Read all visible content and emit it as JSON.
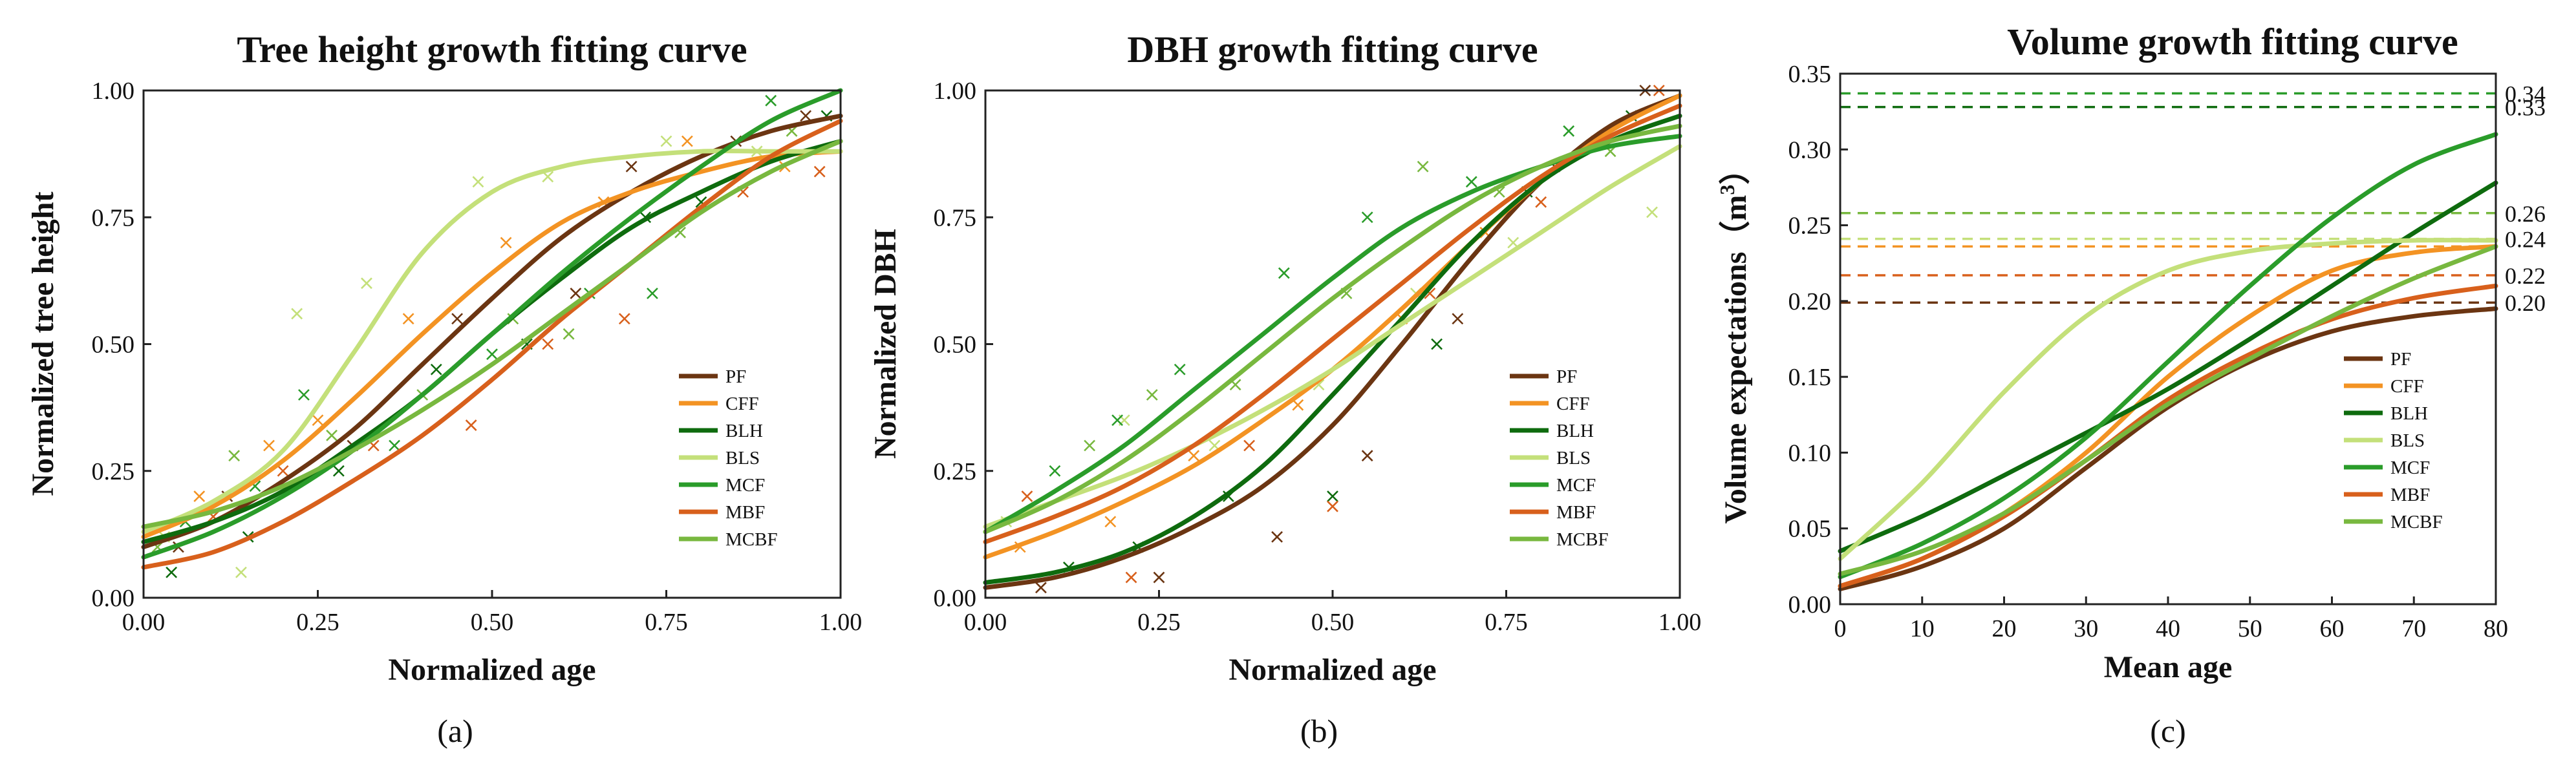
{
  "colors": {
    "PF": "#6b3512",
    "CFF": "#f39323",
    "BLH": "#0e6b0e",
    "BLS": "#c4e07a",
    "MCF": "#2a9c2a",
    "MBF": "#d8601c",
    "MCBF": "#78b83f"
  },
  "chart_data": [
    {
      "type": "line",
      "panel_label": "(a)",
      "title": "Tree height growth fitting curve",
      "xlabel": "Normalized age",
      "ylabel": "Normalized tree height",
      "xlim": [
        0,
        1
      ],
      "ylim": [
        0,
        1
      ],
      "xticks": [
        0,
        0.25,
        0.5,
        0.75,
        1
      ],
      "yticks": [
        0,
        0.25,
        0.5,
        0.75,
        1
      ],
      "xtick_labels": [
        "0.00",
        "0.25",
        "0.50",
        "0.75",
        "1.00"
      ],
      "ytick_labels": [
        "0.00",
        "0.25",
        "0.50",
        "0.75",
        "1.00"
      ],
      "legend": [
        "PF",
        "CFF",
        "BLH",
        "BLS",
        "MCF",
        "MBF",
        "MCBF"
      ],
      "x": [
        0,
        0.1,
        0.2,
        0.3,
        0.4,
        0.5,
        0.6,
        0.7,
        0.8,
        0.9,
        1.0
      ],
      "series": [
        {
          "name": "PF",
          "values": [
            0.1,
            0.15,
            0.23,
            0.33,
            0.46,
            0.59,
            0.71,
            0.8,
            0.87,
            0.92,
            0.95
          ]
        },
        {
          "name": "CFF",
          "values": [
            0.12,
            0.18,
            0.27,
            0.39,
            0.52,
            0.64,
            0.74,
            0.8,
            0.84,
            0.87,
            0.88
          ]
        },
        {
          "name": "BLH",
          "values": [
            0.11,
            0.15,
            0.21,
            0.3,
            0.4,
            0.52,
            0.63,
            0.73,
            0.8,
            0.86,
            0.9
          ]
        },
        {
          "name": "BLS",
          "values": [
            0.13,
            0.19,
            0.29,
            0.48,
            0.68,
            0.8,
            0.85,
            0.87,
            0.88,
            0.88,
            0.88
          ]
        },
        {
          "name": "MCF",
          "values": [
            0.08,
            0.13,
            0.2,
            0.29,
            0.4,
            0.52,
            0.64,
            0.75,
            0.85,
            0.94,
            1.0
          ]
        },
        {
          "name": "MBF",
          "values": [
            0.06,
            0.09,
            0.15,
            0.23,
            0.32,
            0.43,
            0.55,
            0.66,
            0.77,
            0.87,
            0.94
          ]
        },
        {
          "name": "MCBF",
          "values": [
            0.14,
            0.17,
            0.22,
            0.29,
            0.37,
            0.46,
            0.56,
            0.66,
            0.76,
            0.84,
            0.9
          ]
        }
      ],
      "scatter": [
        {
          "name": "PF",
          "x": [
            0.05,
            0.12,
            0.3,
            0.45,
            0.62,
            0.7,
            0.85,
            0.95
          ],
          "y": [
            0.1,
            0.2,
            0.3,
            0.55,
            0.6,
            0.85,
            0.9,
            0.95
          ]
        },
        {
          "name": "CFF",
          "x": [
            0.08,
            0.18,
            0.25,
            0.38,
            0.52,
            0.66,
            0.78,
            0.92
          ],
          "y": [
            0.2,
            0.3,
            0.35,
            0.55,
            0.7,
            0.78,
            0.9,
            0.85
          ]
        },
        {
          "name": "BLH",
          "x": [
            0.04,
            0.15,
            0.28,
            0.42,
            0.55,
            0.72,
            0.8,
            0.98
          ],
          "y": [
            0.05,
            0.12,
            0.25,
            0.45,
            0.5,
            0.75,
            0.78,
            0.95
          ]
        },
        {
          "name": "BLS",
          "x": [
            0.03,
            0.14,
            0.22,
            0.32,
            0.48,
            0.58,
            0.75,
            0.88
          ],
          "y": [
            0.12,
            0.05,
            0.56,
            0.62,
            0.82,
            0.83,
            0.9,
            0.88
          ]
        },
        {
          "name": "MCF",
          "x": [
            0.06,
            0.16,
            0.23,
            0.36,
            0.5,
            0.64,
            0.73,
            0.9
          ],
          "y": [
            0.15,
            0.22,
            0.4,
            0.3,
            0.48,
            0.6,
            0.6,
            0.98
          ]
        },
        {
          "name": "MBF",
          "x": [
            0.1,
            0.2,
            0.33,
            0.47,
            0.58,
            0.69,
            0.86,
            0.97
          ],
          "y": [
            0.16,
            0.25,
            0.3,
            0.34,
            0.5,
            0.55,
            0.8,
            0.84
          ]
        },
        {
          "name": "MCBF",
          "x": [
            0.02,
            0.13,
            0.27,
            0.4,
            0.53,
            0.61,
            0.77,
            0.93
          ],
          "y": [
            0.1,
            0.28,
            0.32,
            0.4,
            0.55,
            0.52,
            0.72,
            0.92
          ]
        }
      ]
    },
    {
      "type": "line",
      "panel_label": "(b)",
      "title": "DBH growth fitting curve",
      "xlabel": "Normalized age",
      "ylabel": "Normalized DBH",
      "xlim": [
        0,
        1
      ],
      "ylim": [
        0,
        1
      ],
      "xticks": [
        0,
        0.25,
        0.5,
        0.75,
        1
      ],
      "yticks": [
        0,
        0.25,
        0.5,
        0.75,
        1
      ],
      "xtick_labels": [
        "0.00",
        "0.25",
        "0.50",
        "0.75",
        "1.00"
      ],
      "ytick_labels": [
        "0.00",
        "0.25",
        "0.50",
        "0.75",
        "1.00"
      ],
      "legend": [
        "PF",
        "CFF",
        "BLH",
        "BLS",
        "MCF",
        "MBF",
        "MCBF"
      ],
      "x": [
        0,
        0.1,
        0.2,
        0.3,
        0.4,
        0.5,
        0.6,
        0.7,
        0.8,
        0.9,
        1.0
      ],
      "series": [
        {
          "name": "PF",
          "values": [
            0.02,
            0.04,
            0.08,
            0.14,
            0.22,
            0.34,
            0.5,
            0.67,
            0.82,
            0.93,
            0.99
          ]
        },
        {
          "name": "CFF",
          "values": [
            0.08,
            0.13,
            0.19,
            0.26,
            0.35,
            0.45,
            0.57,
            0.7,
            0.82,
            0.92,
            0.99
          ]
        },
        {
          "name": "BLH",
          "values": [
            0.03,
            0.05,
            0.09,
            0.16,
            0.26,
            0.4,
            0.55,
            0.7,
            0.82,
            0.9,
            0.95
          ]
        },
        {
          "name": "BLS",
          "values": [
            0.14,
            0.19,
            0.24,
            0.3,
            0.37,
            0.45,
            0.54,
            0.63,
            0.72,
            0.81,
            0.89
          ]
        },
        {
          "name": "MCF",
          "values": [
            0.13,
            0.21,
            0.3,
            0.41,
            0.52,
            0.63,
            0.73,
            0.8,
            0.85,
            0.89,
            0.91
          ]
        },
        {
          "name": "MBF",
          "values": [
            0.11,
            0.16,
            0.22,
            0.3,
            0.4,
            0.51,
            0.62,
            0.73,
            0.83,
            0.91,
            0.97
          ]
        },
        {
          "name": "MCBF",
          "values": [
            0.13,
            0.19,
            0.27,
            0.37,
            0.48,
            0.59,
            0.69,
            0.78,
            0.85,
            0.9,
            0.93
          ]
        }
      ],
      "scatter": [
        {
          "name": "PF",
          "x": [
            0.08,
            0.25,
            0.42,
            0.55,
            0.68,
            0.82,
            0.95
          ],
          "y": [
            0.02,
            0.04,
            0.12,
            0.28,
            0.55,
            0.85,
            1.0
          ]
        },
        {
          "name": "CFF",
          "x": [
            0.05,
            0.18,
            0.3,
            0.45,
            0.6,
            0.72,
            0.88
          ],
          "y": [
            0.1,
            0.15,
            0.28,
            0.38,
            0.55,
            0.72,
            0.9
          ]
        },
        {
          "name": "BLH",
          "x": [
            0.12,
            0.22,
            0.35,
            0.5,
            0.65,
            0.78,
            0.93
          ],
          "y": [
            0.06,
            0.1,
            0.2,
            0.2,
            0.5,
            0.8,
            0.95
          ]
        },
        {
          "name": "BLS",
          "x": [
            0.03,
            0.2,
            0.33,
            0.48,
            0.62,
            0.76,
            0.96
          ],
          "y": [
            0.15,
            0.35,
            0.3,
            0.42,
            0.6,
            0.7,
            0.76
          ]
        },
        {
          "name": "MCF",
          "x": [
            0.1,
            0.19,
            0.28,
            0.43,
            0.55,
            0.7,
            0.84
          ],
          "y": [
            0.25,
            0.35,
            0.45,
            0.64,
            0.75,
            0.82,
            0.92
          ]
        },
        {
          "name": "MBF",
          "x": [
            0.06,
            0.21,
            0.38,
            0.5,
            0.64,
            0.8,
            0.97
          ],
          "y": [
            0.2,
            0.04,
            0.3,
            0.18,
            0.6,
            0.78,
            1.0
          ]
        },
        {
          "name": "MCBF",
          "x": [
            0.15,
            0.24,
            0.36,
            0.52,
            0.63,
            0.74,
            0.9
          ],
          "y": [
            0.3,
            0.4,
            0.42,
            0.6,
            0.85,
            0.8,
            0.88
          ]
        }
      ]
    },
    {
      "type": "line",
      "panel_label": "(c)",
      "title": "Volume growth fitting curve",
      "xlabel": "Mean age",
      "ylabel": "Volume expectations（m",
      "ylabel_sup": "3",
      "ylabel_end": "）",
      "xlim": [
        0,
        80
      ],
      "ylim": [
        0,
        0.35
      ],
      "xticks": [
        0,
        10,
        20,
        30,
        40,
        50,
        60,
        70,
        80
      ],
      "yticks": [
        0,
        0.05,
        0.1,
        0.15,
        0.2,
        0.25,
        0.3,
        0.35
      ],
      "xtick_labels": [
        "0",
        "10",
        "20",
        "30",
        "40",
        "50",
        "60",
        "70",
        "80"
      ],
      "ytick_labels": [
        "0.00",
        "0.05",
        "0.10",
        "0.15",
        "0.20",
        "0.25",
        "0.30",
        "0.35"
      ],
      "legend": [
        "PF",
        "CFF",
        "BLH",
        "BLS",
        "MCF",
        "MBF",
        "MCBF"
      ],
      "x": [
        0,
        10,
        20,
        30,
        40,
        50,
        60,
        70,
        80
      ],
      "series": [
        {
          "name": "PF",
          "values": [
            0.01,
            0.025,
            0.05,
            0.09,
            0.13,
            0.16,
            0.18,
            0.19,
            0.195
          ]
        },
        {
          "name": "CFF",
          "values": [
            0.012,
            0.03,
            0.06,
            0.1,
            0.15,
            0.19,
            0.22,
            0.232,
            0.236
          ]
        },
        {
          "name": "BLH",
          "values": [
            0.035,
            0.058,
            0.085,
            0.113,
            0.142,
            0.175,
            0.21,
            0.245,
            0.278
          ]
        },
        {
          "name": "BLS",
          "values": [
            0.03,
            0.08,
            0.14,
            0.19,
            0.22,
            0.233,
            0.238,
            0.24,
            0.24
          ]
        },
        {
          "name": "MCF",
          "values": [
            0.018,
            0.04,
            0.07,
            0.11,
            0.16,
            0.21,
            0.255,
            0.29,
            0.31
          ]
        },
        {
          "name": "MBF",
          "values": [
            0.012,
            0.03,
            0.058,
            0.095,
            0.135,
            0.165,
            0.188,
            0.202,
            0.21
          ]
        },
        {
          "name": "MCBF",
          "values": [
            0.02,
            0.035,
            0.06,
            0.095,
            0.132,
            0.162,
            0.19,
            0.215,
            0.236
          ]
        }
      ],
      "reference_lines": [
        {
          "name": "MCF",
          "value": 0.337,
          "label": "0.34"
        },
        {
          "name": "BLH",
          "value": 0.328,
          "label": "0.33"
        },
        {
          "name": "MCBF",
          "value": 0.258,
          "label": "0.26"
        },
        {
          "name": "BLS",
          "value": 0.241,
          "label": "0.24"
        },
        {
          "name": "CFF",
          "value": 0.236,
          "label": ""
        },
        {
          "name": "MBF",
          "value": 0.217,
          "label": "0.22"
        },
        {
          "name": "PF",
          "value": 0.199,
          "label": "0.20"
        }
      ]
    }
  ]
}
